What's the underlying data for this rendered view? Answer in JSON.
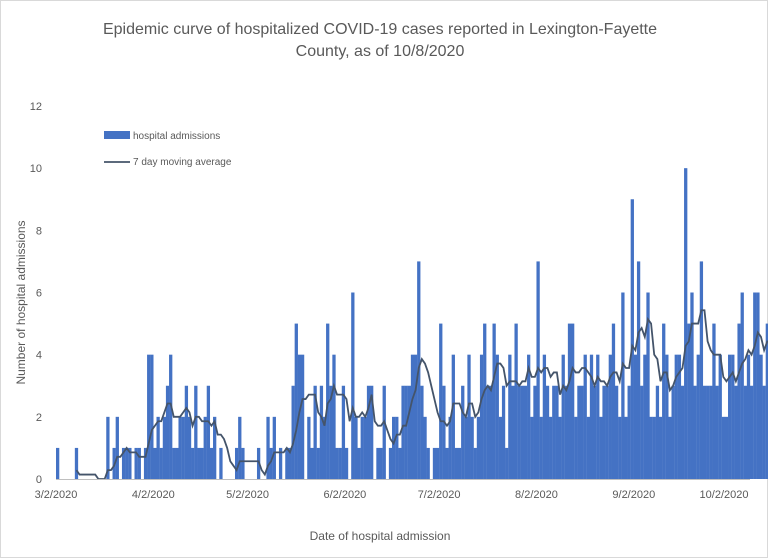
{
  "chart_data": {
    "type": "bar",
    "title_lines": [
      "Epidemic curve of hospitalized COVID-19 cases reported in Lexington-Fayette",
      "County, as of 10/8/2020"
    ],
    "xlabel": "Date of hospital admission",
    "ylabel": "Number of hospital admissions",
    "ylim": [
      0,
      12
    ],
    "yticks": [
      0,
      2,
      4,
      6,
      8,
      10,
      12
    ],
    "x_start_date": "3/2/2020",
    "x_end_date": "10/8/2020",
    "xtick_labels": [
      "3/2/2020",
      "4/2/2020",
      "5/2/2020",
      "6/2/2020",
      "7/2/2020",
      "8/2/2020",
      "9/2/2020",
      "10/2/2020"
    ],
    "grid": false,
    "legend_position": "top-left",
    "series": [
      {
        "name": "hospital admissions",
        "kind": "bar",
        "color": "#4472c4",
        "values": [
          1,
          0,
          0,
          0,
          0,
          0,
          1,
          0,
          0,
          0,
          0,
          0,
          0,
          0,
          0,
          0,
          2,
          0,
          1,
          2,
          0,
          1,
          1,
          1,
          0,
          1,
          1,
          0,
          1,
          4,
          4,
          1,
          2,
          1,
          2,
          3,
          4,
          1,
          1,
          2,
          2,
          3,
          2,
          1,
          3,
          1,
          1,
          2,
          3,
          1,
          2,
          0,
          1,
          0,
          0,
          0,
          0,
          1,
          2,
          1,
          0,
          0,
          0,
          0,
          1,
          0,
          0,
          2,
          1,
          2,
          0,
          1,
          0,
          1,
          1,
          3,
          5,
          4,
          4,
          0,
          2,
          1,
          3,
          1,
          3,
          2,
          5,
          3,
          4,
          1,
          1,
          3,
          1,
          0,
          6,
          2,
          1,
          2,
          2,
          3,
          3,
          0,
          1,
          1,
          3,
          0,
          1,
          2,
          2,
          1,
          3,
          3,
          3,
          4,
          4,
          7,
          3,
          2,
          1,
          0,
          1,
          1,
          5,
          3,
          1,
          2,
          4,
          1,
          1,
          3,
          2,
          4,
          2,
          1,
          2,
          4,
          5,
          3,
          3,
          5,
          4,
          2,
          3,
          1,
          4,
          3,
          5,
          3,
          3,
          3,
          4,
          2,
          3,
          7,
          2,
          4,
          3,
          2,
          3,
          3,
          2,
          4,
          3,
          5,
          5,
          2,
          3,
          3,
          4,
          2,
          4,
          3,
          4,
          2,
          3,
          3,
          4,
          5,
          3,
          2,
          6,
          2,
          3,
          9,
          4,
          7,
          3,
          4,
          6,
          2,
          2,
          3,
          2,
          5,
          4,
          2,
          3,
          4,
          4,
          3,
          10,
          5,
          6,
          3,
          4,
          7,
          3,
          3,
          3,
          5,
          3,
          4,
          2,
          2,
          4,
          4,
          3,
          5,
          6,
          3,
          4,
          3,
          6,
          6,
          4,
          3,
          5,
          4,
          4,
          7,
          3,
          2,
          3,
          3,
          5,
          3,
          2,
          3,
          2,
          4,
          4,
          3,
          1,
          2,
          3,
          3,
          2,
          2,
          2,
          4,
          5,
          4,
          7,
          3,
          2,
          1
        ]
      },
      {
        "name": "7 day moving average",
        "kind": "line",
        "color": "#44546a"
      }
    ]
  }
}
